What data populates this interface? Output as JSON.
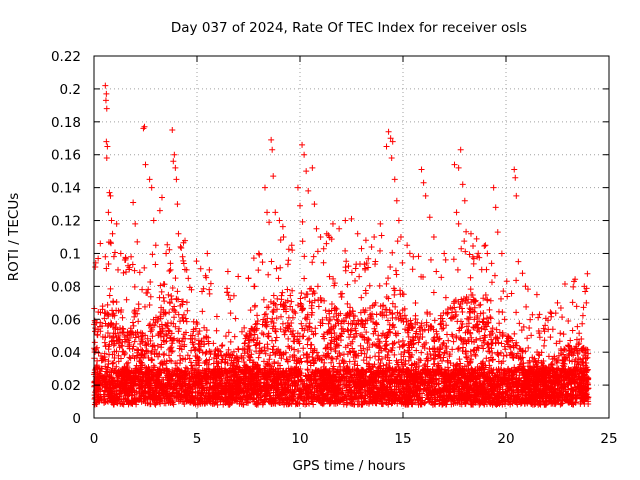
{
  "chart_data": {
    "type": "scatter",
    "title": "Day 037 of 2024, Rate Of TEC Index for receiver osls",
    "xlabel": "GPS time / hours",
    "ylabel": "ROTI / TECUs",
    "xlim": [
      0,
      25
    ],
    "ylim": [
      0,
      0.22
    ],
    "xticks": [
      0,
      5,
      10,
      15,
      20,
      25
    ],
    "yticks": [
      0,
      0.02,
      0.04,
      0.06,
      0.08,
      0.1,
      0.12,
      0.14,
      0.16,
      0.18,
      0.2,
      0.22
    ],
    "grid": true,
    "marker": "plus",
    "color": "#ff0000",
    "series": [
      {
        "x_range": [
          0,
          24
        ],
        "points": [
          [
            0.55,
            0.202
          ],
          [
            0.6,
            0.197
          ],
          [
            0.58,
            0.193
          ],
          [
            0.62,
            0.188
          ],
          [
            0.6,
            0.168
          ],
          [
            0.65,
            0.165
          ],
          [
            0.62,
            0.158
          ],
          [
            0.75,
            0.137
          ],
          [
            0.8,
            0.135
          ],
          [
            0.7,
            0.125
          ],
          [
            0.85,
            0.12
          ],
          [
            0.9,
            0.112
          ],
          [
            0.55,
            0.098
          ],
          [
            1.1,
            0.118
          ],
          [
            1.3,
            0.1
          ],
          [
            1.5,
            0.096
          ],
          [
            1.8,
            0.098
          ],
          [
            1.9,
            0.131
          ],
          [
            2.0,
            0.118
          ],
          [
            2.1,
            0.107
          ],
          [
            2.4,
            0.176
          ],
          [
            2.45,
            0.177
          ],
          [
            2.5,
            0.154
          ],
          [
            2.7,
            0.145
          ],
          [
            2.8,
            0.14
          ],
          [
            2.9,
            0.12
          ],
          [
            3.0,
            0.105
          ],
          [
            3.3,
            0.134
          ],
          [
            3.2,
            0.126
          ],
          [
            3.5,
            0.1
          ],
          [
            3.8,
            0.175
          ],
          [
            3.9,
            0.16
          ],
          [
            3.85,
            0.156
          ],
          [
            3.95,
            0.152
          ],
          [
            4.0,
            0.145
          ],
          [
            4.05,
            0.13
          ],
          [
            4.1,
            0.112
          ],
          [
            4.2,
            0.104
          ],
          [
            4.3,
            0.098
          ],
          [
            4.5,
            0.09
          ],
          [
            5.5,
            0.1
          ],
          [
            5.6,
            0.09
          ],
          [
            6.5,
            0.089
          ],
          [
            7.0,
            0.086
          ],
          [
            7.5,
            0.085
          ],
          [
            7.8,
            0.08
          ],
          [
            8.0,
            0.1
          ],
          [
            8.3,
            0.14
          ],
          [
            8.4,
            0.125
          ],
          [
            8.5,
            0.119
          ],
          [
            8.6,
            0.169
          ],
          [
            8.65,
            0.163
          ],
          [
            8.7,
            0.147
          ],
          [
            8.8,
            0.125
          ],
          [
            9.0,
            0.12
          ],
          [
            9.2,
            0.11
          ],
          [
            9.6,
            0.105
          ],
          [
            9.9,
            0.14
          ],
          [
            10.0,
            0.129
          ],
          [
            10.1,
            0.166
          ],
          [
            10.2,
            0.16
          ],
          [
            10.3,
            0.15
          ],
          [
            10.4,
            0.138
          ],
          [
            10.6,
            0.152
          ],
          [
            10.7,
            0.13
          ],
          [
            10.8,
            0.115
          ],
          [
            11.0,
            0.11
          ],
          [
            11.3,
            0.112
          ],
          [
            11.6,
            0.118
          ],
          [
            11.9,
            0.115
          ],
          [
            12.2,
            0.12
          ],
          [
            12.5,
            0.121
          ],
          [
            12.8,
            0.112
          ],
          [
            13.2,
            0.108
          ],
          [
            13.6,
            0.11
          ],
          [
            13.9,
            0.118
          ],
          [
            14.2,
            0.165
          ],
          [
            14.3,
            0.174
          ],
          [
            14.4,
            0.17
          ],
          [
            14.5,
            0.168
          ],
          [
            14.45,
            0.158
          ],
          [
            14.6,
            0.145
          ],
          [
            14.7,
            0.132
          ],
          [
            14.8,
            0.12
          ],
          [
            14.9,
            0.11
          ],
          [
            15.2,
            0.105
          ],
          [
            15.5,
            0.098
          ],
          [
            15.9,
            0.151
          ],
          [
            16.0,
            0.143
          ],
          [
            16.1,
            0.135
          ],
          [
            16.3,
            0.122
          ],
          [
            16.5,
            0.11
          ],
          [
            17.0,
            0.1
          ],
          [
            17.5,
            0.154
          ],
          [
            17.7,
            0.152
          ],
          [
            17.8,
            0.163
          ],
          [
            17.9,
            0.142
          ],
          [
            18.0,
            0.132
          ],
          [
            17.6,
            0.125
          ],
          [
            17.7,
            0.118
          ],
          [
            18.3,
            0.112
          ],
          [
            18.6,
            0.098
          ],
          [
            19.0,
            0.105
          ],
          [
            19.4,
            0.14
          ],
          [
            19.5,
            0.128
          ],
          [
            19.6,
            0.113
          ],
          [
            19.8,
            0.1
          ],
          [
            20.4,
            0.151
          ],
          [
            20.45,
            0.146
          ],
          [
            20.5,
            0.135
          ],
          [
            20.6,
            0.095
          ],
          [
            20.8,
            0.088
          ],
          [
            21.5,
            0.075
          ],
          [
            22.5,
            0.07
          ],
          [
            23.3,
            0.083
          ],
          [
            23.8,
            0.08
          ],
          [
            23.9,
            0.07
          ]
        ]
      }
    ]
  }
}
